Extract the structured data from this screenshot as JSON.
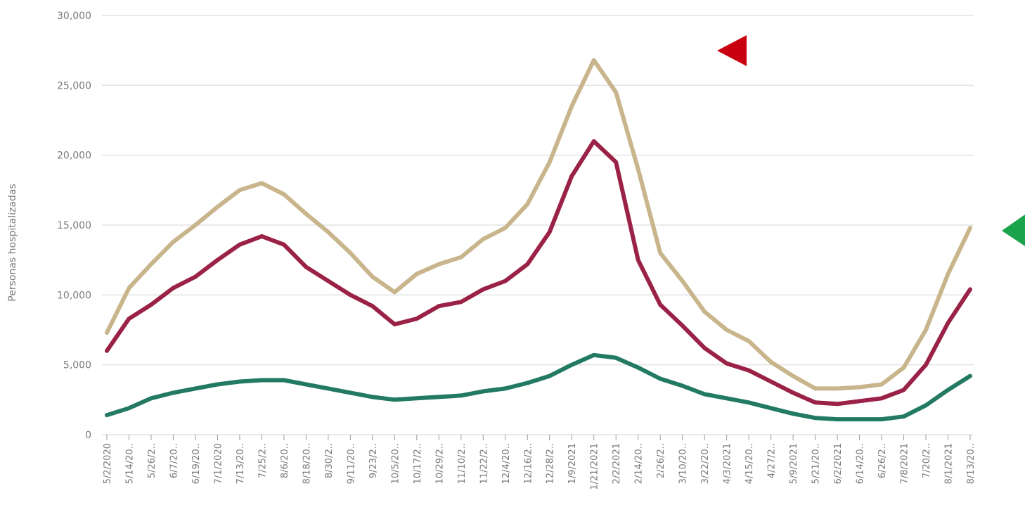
{
  "chart_data": {
    "type": "line",
    "y_label": "Personas hospitalizadas",
    "categories": [
      "5/2/2020",
      "5/14/20..",
      "5/26/2..",
      "6/7/20..",
      "6/19/20..",
      "7/1/2020",
      "7/13/20..",
      "7/25/2..",
      "8/6/20..",
      "8/18/20..",
      "8/30/2..",
      "9/11/20..",
      "9/23/2..",
      "10/5/20..",
      "10/17/2..",
      "10/29/2..",
      "11/10/2..",
      "11/22/2..",
      "12/4/20..",
      "12/16/2..",
      "12/28/2..",
      "1/9/2021",
      "1/21/2021",
      "2/2/2021",
      "2/14/20..",
      "2/26/2..",
      "3/10/20..",
      "3/22/20..",
      "4/3/2021",
      "4/15/20..",
      "4/27/2..",
      "5/9/2021",
      "5/21/20..",
      "6/2/2021",
      "6/14/20..",
      "6/26/2..",
      "7/8/2021",
      "7/20/2..",
      "8/1/2021",
      "8/13/20.."
    ],
    "series": [
      {
        "color": "#c9b58c",
        "values": [
          7300,
          10500,
          12200,
          13800,
          15000,
          16300,
          17500,
          18000,
          17200,
          15800,
          14500,
          13000,
          11300,
          10200,
          11500,
          12200,
          12700,
          14000,
          14800,
          16500,
          19500,
          23500,
          26800,
          24500,
          19000,
          13000,
          11000,
          8800,
          7500,
          6700,
          5200,
          4200,
          3300,
          3300,
          3400,
          3600,
          4800,
          7500,
          11500,
          14800
        ]
      },
      {
        "color": "#9b2247",
        "values": [
          6000,
          8300,
          9300,
          10500,
          11300,
          12500,
          13600,
          14200,
          13600,
          12000,
          11000,
          10000,
          9200,
          7900,
          8300,
          9200,
          9500,
          10400,
          11000,
          12200,
          14500,
          18500,
          21000,
          19500,
          12500,
          9300,
          7800,
          6200,
          5100,
          4600,
          3800,
          3000,
          2300,
          2200,
          2400,
          2600,
          3200,
          5000,
          8000,
          10400
        ]
      },
      {
        "color": "#237a63",
        "values": [
          1400,
          1900,
          2600,
          3000,
          3300,
          3600,
          3800,
          3900,
          3900,
          3600,
          3300,
          3000,
          2700,
          2500,
          2600,
          2700,
          2800,
          3100,
          3300,
          3700,
          4200,
          5000,
          5700,
          5500,
          4800,
          4000,
          3500,
          2900,
          2600,
          2300,
          1900,
          1500,
          1200,
          1100,
          1100,
          1100,
          1300,
          2100,
          3200,
          4200
        ]
      }
    ],
    "ylim": [
      0,
      30000
    ],
    "yticks": [
      0,
      {
        "value": 5000,
        "label": "5,000"
      },
      {
        "value": 10000,
        "label": "10,000"
      },
      {
        "value": 15000,
        "label": "15,000"
      },
      {
        "value": 20000,
        "label": "20,000"
      },
      {
        "value": 25000,
        "label": "25,000"
      },
      {
        "value": 30000,
        "label": "30,000"
      }
    ],
    "grid": true
  }
}
